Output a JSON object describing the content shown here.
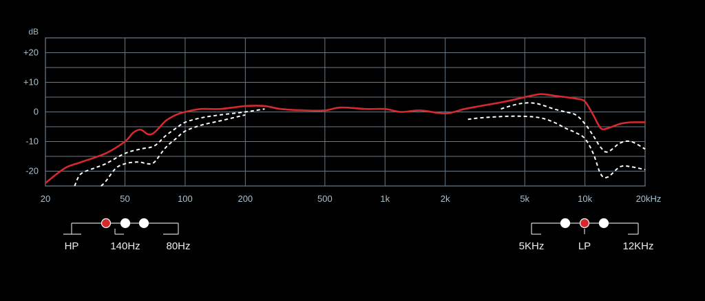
{
  "chart_data": {
    "type": "line",
    "x_scale": "log",
    "ylabel": "dB",
    "xlim": [
      20,
      20000
    ],
    "ylim": [
      -25,
      25
    ],
    "grid": true,
    "x_ticks": [
      {
        "value": 20,
        "label": "20"
      },
      {
        "value": 50,
        "label": "50"
      },
      {
        "value": 100,
        "label": "100"
      },
      {
        "value": 200,
        "label": "200"
      },
      {
        "value": 500,
        "label": "500"
      },
      {
        "value": 1000,
        "label": "1k"
      },
      {
        "value": 2000,
        "label": "2k"
      },
      {
        "value": 5000,
        "label": "5k"
      },
      {
        "value": 10000,
        "label": "10k"
      },
      {
        "value": 20000,
        "label": "20kHz"
      }
    ],
    "y_ticks": [
      {
        "value": 20,
        "label": "+20"
      },
      {
        "value": 10,
        "label": "+10"
      },
      {
        "value": 0,
        "label": "0"
      },
      {
        "value": -10,
        "label": "-10"
      },
      {
        "value": -20,
        "label": "-20"
      }
    ],
    "series": [
      {
        "id": "flat",
        "color": "#d42a2e",
        "style": "solid",
        "x": [
          20,
          25,
          30,
          40,
          50,
          55,
          60,
          65,
          70,
          80,
          90,
          100,
          120,
          150,
          200,
          250,
          300,
          400,
          500,
          600,
          800,
          1000,
          1200,
          1500,
          2000,
          2500,
          3000,
          4000,
          5000,
          6000,
          7000,
          8000,
          9000,
          10000,
          11000,
          12000,
          13000,
          15000,
          17000,
          20000
        ],
        "values": [
          -24,
          -19,
          -17,
          -14,
          -10,
          -7,
          -6,
          -7.5,
          -7,
          -3,
          -1,
          0,
          1,
          1,
          2,
          2,
          1,
          0.5,
          0.5,
          1.5,
          1,
          1,
          0,
          0.5,
          -0.5,
          1,
          2,
          3.5,
          5,
          6,
          5.5,
          5,
          4.5,
          3.5,
          -1,
          -5.5,
          -5.5,
          -4,
          -3.5,
          -3.5
        ]
      },
      {
        "id": "hp-140hz",
        "color": "#ffffff",
        "style": "dashed",
        "x": [
          28,
          30,
          35,
          40,
          50,
          60,
          70,
          80,
          90,
          100,
          120,
          150,
          200,
          250
        ],
        "values": [
          -25,
          -21,
          -19,
          -17.5,
          -14,
          -12.5,
          -11.5,
          -8,
          -5.5,
          -3.5,
          -2,
          -1,
          0,
          1
        ]
      },
      {
        "id": "hp-80hz",
        "color": "#ffffff",
        "style": "dashed",
        "x": [
          38,
          40,
          45,
          50,
          55,
          60,
          65,
          70,
          80,
          90,
          100,
          120,
          150,
          200
        ],
        "values": [
          -25,
          -23.5,
          -19,
          -17.5,
          -17,
          -17,
          -17.5,
          -17,
          -12,
          -9,
          -6.5,
          -4.5,
          -3,
          -1
        ]
      },
      {
        "id": "lp-5khz",
        "color": "#ffffff",
        "style": "dashed",
        "x": [
          2600,
          3000,
          4000,
          5000,
          6000,
          7000,
          8000,
          9000,
          10000,
          11000,
          12000,
          13000,
          15000,
          17000,
          20000
        ],
        "values": [
          -2.5,
          -2,
          -1.5,
          -1.5,
          -2,
          -3.5,
          -5.5,
          -7,
          -9,
          -14,
          -21,
          -22,
          -18.5,
          -18.5,
          -19.5
        ]
      },
      {
        "id": "lp-12khz",
        "color": "#ffffff",
        "style": "dashed",
        "x": [
          3800,
          4000,
          4500,
          5000,
          5500,
          6000,
          7000,
          8000,
          9000,
          10000,
          11000,
          12000,
          13000,
          15000,
          17000,
          20000
        ],
        "values": [
          1,
          1.5,
          2.5,
          3,
          3,
          2.5,
          1,
          0,
          -1,
          -4,
          -8,
          -12,
          -13.5,
          -10.5,
          -10,
          -12.5
        ]
      }
    ]
  },
  "legend": {
    "left": {
      "dots": [
        {
          "color": "#d42a2e"
        },
        {
          "color": "#ffffff"
        },
        {
          "color": "#ffffff"
        }
      ],
      "labels": [
        "HP",
        "140Hz",
        "80Hz"
      ]
    },
    "right": {
      "dots": [
        {
          "color": "#ffffff"
        },
        {
          "color": "#d42a2e"
        },
        {
          "color": "#ffffff"
        }
      ],
      "labels": [
        "5KHz",
        "LP",
        "12KHz"
      ]
    }
  }
}
